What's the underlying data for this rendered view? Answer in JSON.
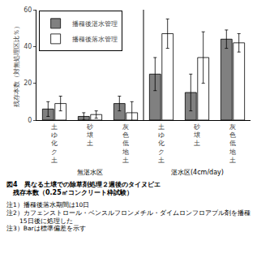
{
  "chart_data": {
    "type": "bar",
    "title": "図4　異なる土壌での除草剤処理２週後のタイヌビエ\n　残存本数（0.25㎡コンクリート枠試験）",
    "ylabel": "残存本数（対無処理区比％）",
    "categories": [
      "土\nゆ\n化\nク\n土",
      "砂\n壌\n土",
      "灰\n色\n低\n地\n土",
      "土\nゆ\n化\nク\n土",
      "砂\n壌\n土",
      "灰\n色\n低\n地\n土"
    ],
    "section_labels": [
      "無湛水区",
      "湛水区(4cm/day)"
    ],
    "series": [
      {
        "name": "播種後湛水管理",
        "color": "#808080",
        "values": [
          6,
          2,
          9,
          25,
          15,
          44
        ],
        "errors": [
          4,
          2,
          4,
          9,
          10,
          5
        ]
      },
      {
        "name": "播種後落水管理",
        "color": "#ffffff",
        "values": [
          9,
          3,
          4,
          47,
          34,
          42
        ],
        "errors": [
          4,
          2,
          6,
          8,
          14,
          5
        ]
      }
    ],
    "edge_color": "#000000",
    "ylim": [
      0,
      60
    ],
    "yticks": [
      0,
      20,
      40,
      60
    ],
    "grid": false,
    "legend": "upper left",
    "annotations": [
      "注1）播種後落水期間は10日",
      "注2）カフェンストロール・ベンスルフロンメチル・ダイムロンフロアブル剤を播種",
      "　　15日後に処理した",
      "注3）Barは標準偏差を示す"
    ]
  }
}
